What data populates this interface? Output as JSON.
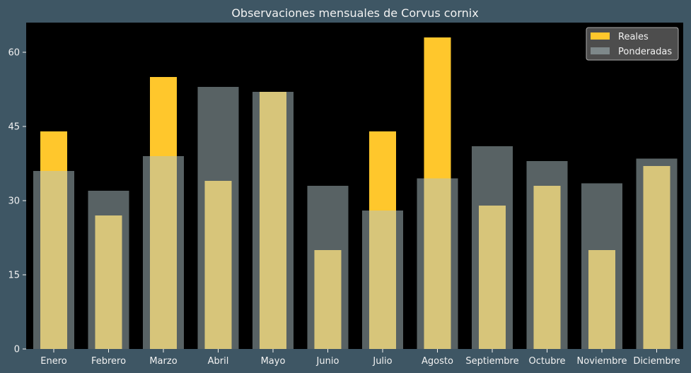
{
  "chart_data": {
    "type": "bar",
    "title": "Observaciones mensuales de Corvus cornix",
    "xlabel": "",
    "ylabel": "",
    "categories": [
      "Enero",
      "Febrero",
      "Marzo",
      "Abril",
      "Mayo",
      "Junio",
      "Julio",
      "Agosto",
      "Septiembre",
      "Octubre",
      "Noviembre",
      "Diciembre"
    ],
    "series": [
      {
        "name": "Reales",
        "color": "#ffc72c",
        "values": [
          44,
          27,
          55,
          34,
          52,
          20,
          44,
          63,
          29,
          33,
          20,
          37
        ]
      },
      {
        "name": "Ponderadas",
        "color": "#b0c4c8",
        "values": [
          36,
          32,
          39,
          53,
          52,
          33,
          28,
          34.5,
          41,
          38,
          33.5,
          38.5
        ]
      }
    ],
    "ylim": [
      0,
      66
    ],
    "yticks": [
      0,
      15,
      30,
      45,
      60
    ],
    "grid": false,
    "legend_position": "top-right",
    "background": "#000000",
    "figure_background": "#3e5664"
  }
}
